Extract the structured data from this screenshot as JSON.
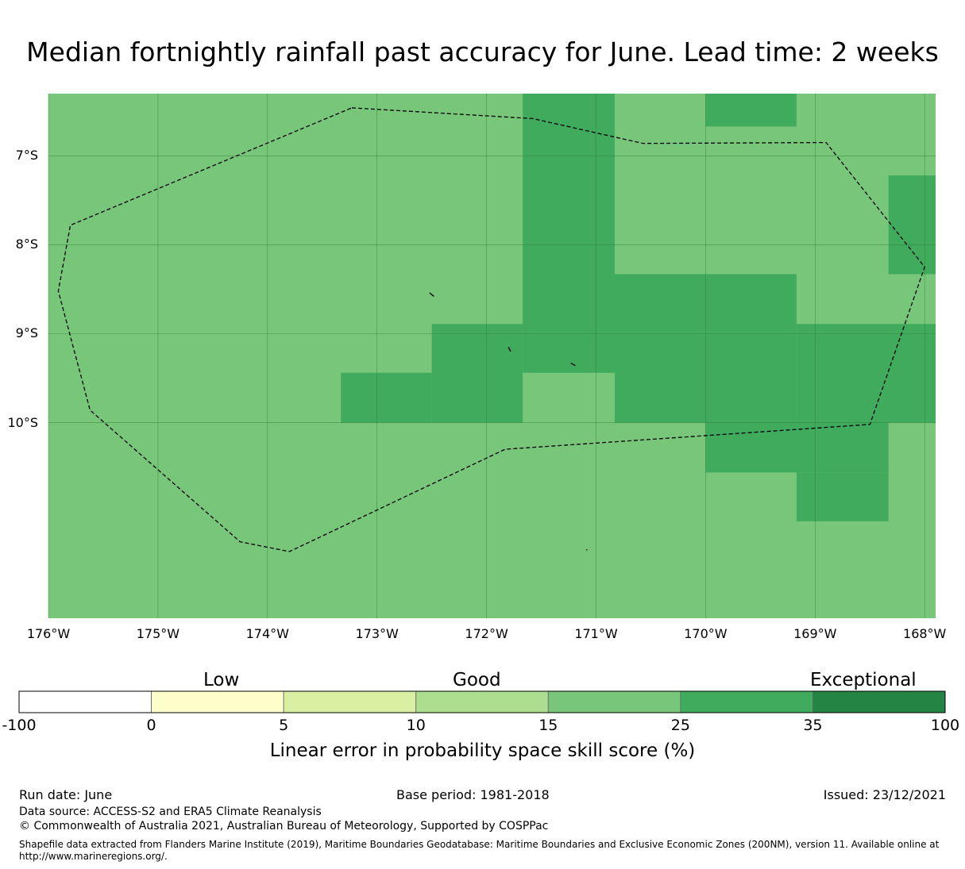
{
  "title": "Median fortnightly rainfall past accuracy for June. Lead time: 2 weeks",
  "map": {
    "lon_range": [
      -176,
      -167.9
    ],
    "lat_range": [
      -12.2,
      -6.3
    ],
    "lat_ticks": [
      {
        "value": -7,
        "label": "7°S"
      },
      {
        "value": -8,
        "label": "8°S"
      },
      {
        "value": -9,
        "label": "9°S"
      },
      {
        "value": -10,
        "label": "10°S"
      }
    ],
    "lon_ticks": [
      {
        "value": -176,
        "label": "176°W"
      },
      {
        "value": -175,
        "label": "175°W"
      },
      {
        "value": -174,
        "label": "174°W"
      },
      {
        "value": -173,
        "label": "173°W"
      },
      {
        "value": -172,
        "label": "172°W"
      },
      {
        "value": -171,
        "label": "171°W"
      },
      {
        "value": -170,
        "label": "170°W"
      },
      {
        "value": -169,
        "label": "169°W"
      },
      {
        "value": -168,
        "label": "168°W"
      }
    ],
    "background_class_color": "#78c679",
    "skill_cells": [
      {
        "lon": [
          -171.67,
          -170.83
        ],
        "lat": [
          -6.3,
          -10.0
        ],
        "class": "25-35"
      },
      {
        "lon": [
          -170.0,
          -169.17
        ],
        "lat": [
          -6.3,
          -6.67
        ],
        "class": "25-35"
      },
      {
        "lon": [
          -168.33,
          -167.9
        ],
        "lat": [
          -7.22,
          -8.33
        ],
        "class": "25-35"
      },
      {
        "lon": [
          -170.83,
          -169.17
        ],
        "lat": [
          -8.33,
          -10.0
        ],
        "class": "25-35"
      },
      {
        "lon": [
          -169.17,
          -167.9
        ],
        "lat": [
          -8.89,
          -10.0
        ],
        "class": "25-35"
      },
      {
        "lon": [
          -172.5,
          -171.67
        ],
        "lat": [
          -8.89,
          -10.0
        ],
        "class": "25-35"
      },
      {
        "lon": [
          -173.33,
          -172.5
        ],
        "lat": [
          -9.44,
          -10.0
        ],
        "class": "25-35"
      },
      {
        "lon": [
          -170.0,
          -168.33
        ],
        "lat": [
          -10.0,
          -10.56
        ],
        "class": "25-35"
      },
      {
        "lon": [
          -169.17,
          -168.33
        ],
        "lat": [
          -10.56,
          -11.11
        ],
        "class": "25-35"
      },
      {
        "lon": [
          -171.67,
          -170.83
        ],
        "lat": [
          -9.44,
          -10.0
        ],
        "class": "15-25"
      }
    ],
    "eez_boundary": [
      [
        -173.23,
        -6.46
      ],
      [
        -171.58,
        -6.58
      ],
      [
        -170.57,
        -6.86
      ],
      [
        -168.9,
        -6.85
      ],
      [
        -168.0,
        -8.25
      ],
      [
        -168.5,
        -10.02
      ],
      [
        -171.83,
        -10.3
      ],
      [
        -173.8,
        -11.45
      ],
      [
        -174.25,
        -11.34
      ],
      [
        -175.62,
        -9.86
      ],
      [
        -175.91,
        -8.52
      ],
      [
        -175.8,
        -7.78
      ],
      [
        -173.23,
        -6.46
      ]
    ],
    "islands": [
      [
        [
          -172.52,
          -8.54
        ],
        [
          -172.48,
          -8.58
        ]
      ],
      [
        [
          -171.8,
          -9.15
        ],
        [
          -171.78,
          -9.2
        ]
      ],
      [
        [
          -171.23,
          -9.33
        ],
        [
          -171.19,
          -9.36
        ]
      ],
      [
        [
          -171.09,
          -11.43
        ],
        [
          -171.08,
          -11.43
        ]
      ]
    ]
  },
  "legend": {
    "bands": [
      {
        "label": "Low",
        "position": "low"
      },
      {
        "label": "Good",
        "position": "middle"
      },
      {
        "label": "Exceptional",
        "position": "high"
      }
    ],
    "classes": [
      {
        "from": "-100",
        "to": "0",
        "color": "#ffffff"
      },
      {
        "from": "0",
        "to": "5",
        "color": "#ffffcc"
      },
      {
        "from": "5",
        "to": "10",
        "color": "#d9f0a3"
      },
      {
        "from": "10",
        "to": "15",
        "color": "#addd8e"
      },
      {
        "from": "15",
        "to": "25",
        "color": "#78c679"
      },
      {
        "from": "25",
        "to": "35",
        "color": "#41ab5d"
      },
      {
        "from": "35",
        "to": "100",
        "color": "#238443"
      }
    ],
    "ticks": [
      "-100",
      "0",
      "5",
      "10",
      "15",
      "25",
      "35",
      "100"
    ],
    "axis_label": "Linear error in probability space skill score (%)"
  },
  "footer": {
    "run_date": "Run date: June",
    "base_period": "Base period: 1981-2018",
    "issued": "Issued: 23/12/2021",
    "data_source": "Data source: ACCESS-S2 and ERA5 Climate Reanalysis",
    "copyright": "© Commonwealth of Australia 2021, Australian Bureau of Meteorology, Supported by COSPPac",
    "shapefile": "Shapefile data extracted from Flanders Marine Institute (2019), Maritime Boundaries Geodatabase: Maritime Boundaries and Exclusive Economic Zones (200NM), version 11. Available online at http://www.marineregions.org/."
  }
}
